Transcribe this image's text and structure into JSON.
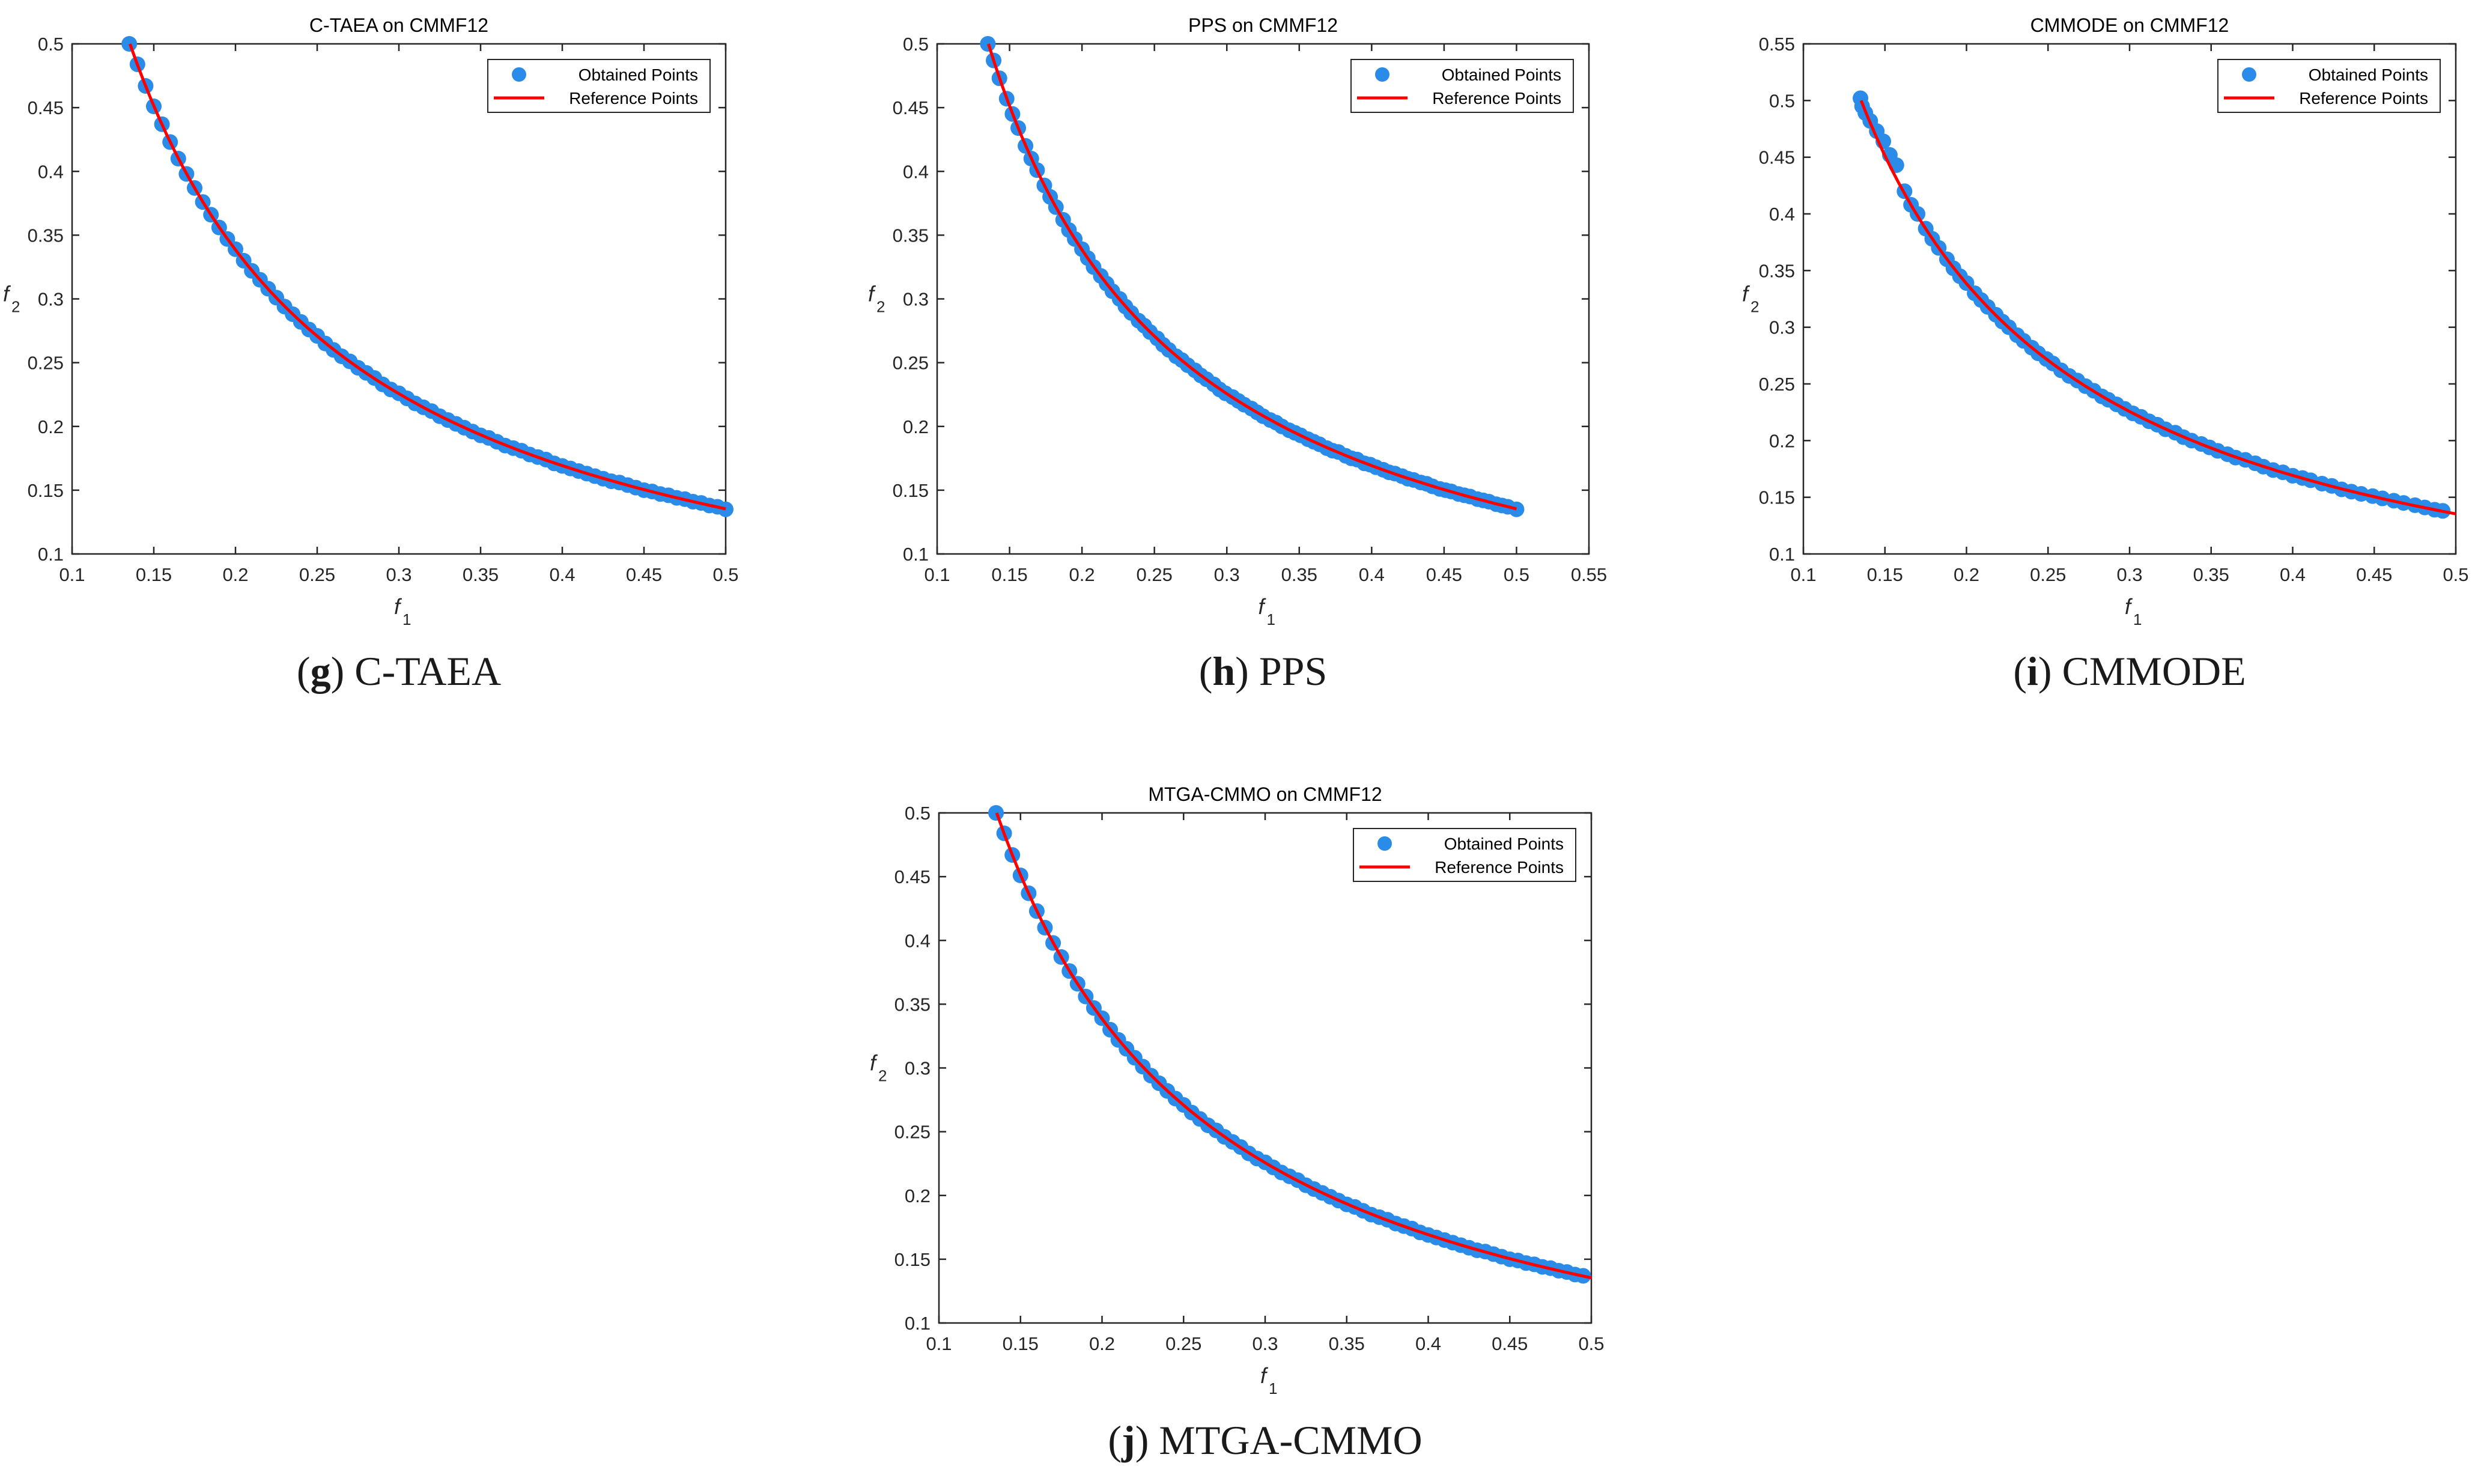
{
  "figure": {
    "background": "#ffffff",
    "point_color": "#2b8be8",
    "line_color": "#ff0000"
  },
  "chart_data": [
    {
      "type": "scatter",
      "panel_letter": "g",
      "caption_label": "C-TAEA",
      "title": "C-TAEA on CMMF12",
      "xlabel": "f",
      "xlabel_sub": "1",
      "ylabel": "f",
      "ylabel_sub": "2",
      "xlim": [
        0.1,
        0.5
      ],
      "ylim": [
        0.1,
        0.5
      ],
      "xticks": [
        0.1,
        0.15,
        0.2,
        0.25,
        0.3,
        0.35,
        0.4,
        0.45,
        0.5
      ],
      "xtick_labels": [
        "0.1",
        "0.15",
        "0.2",
        "0.25",
        "0.3",
        "0.35",
        "0.4",
        "0.45",
        "0.5"
      ],
      "yticks": [
        0.1,
        0.15,
        0.2,
        0.25,
        0.3,
        0.35,
        0.4,
        0.45,
        0.5
      ],
      "ytick_labels": [
        "0.1",
        "0.15",
        "0.2",
        "0.25",
        "0.3",
        "0.35",
        "0.4",
        "0.45",
        "0.5"
      ],
      "legend": [
        "Obtained Points",
        "Reference Points"
      ],
      "legend_position": "top-right",
      "reference_curve": "f2 = 0.0677 / f1, f1 in [0.1354, 0.5]",
      "reference_points": {
        "x": [
          0.135,
          0.15,
          0.175,
          0.2,
          0.25,
          0.3,
          0.35,
          0.4,
          0.45,
          0.5
        ],
        "y": [
          0.5,
          0.451,
          0.387,
          0.339,
          0.271,
          0.226,
          0.193,
          0.169,
          0.15,
          0.135
        ]
      },
      "obtained_points": {
        "x": [
          0.135,
          0.14,
          0.145,
          0.15,
          0.155,
          0.16,
          0.165,
          0.17,
          0.175,
          0.18,
          0.185,
          0.19,
          0.195,
          0.2,
          0.205,
          0.21,
          0.215,
          0.22,
          0.225,
          0.23,
          0.235,
          0.24,
          0.245,
          0.25,
          0.255,
          0.26,
          0.265,
          0.27,
          0.275,
          0.28,
          0.285,
          0.29,
          0.295,
          0.3,
          0.305,
          0.31,
          0.315,
          0.32,
          0.325,
          0.33,
          0.335,
          0.34,
          0.345,
          0.35,
          0.355,
          0.36,
          0.365,
          0.37,
          0.375,
          0.38,
          0.385,
          0.39,
          0.395,
          0.4,
          0.405,
          0.41,
          0.415,
          0.42,
          0.425,
          0.43,
          0.435,
          0.44,
          0.445,
          0.45,
          0.455,
          0.46,
          0.465,
          0.47,
          0.475,
          0.48,
          0.485,
          0.49,
          0.495,
          0.5
        ],
        "y": [
          0.5,
          0.484,
          0.467,
          0.451,
          0.437,
          0.423,
          0.41,
          0.398,
          0.387,
          0.376,
          0.366,
          0.356,
          0.347,
          0.339,
          0.33,
          0.322,
          0.315,
          0.308,
          0.301,
          0.294,
          0.288,
          0.282,
          0.276,
          0.271,
          0.265,
          0.26,
          0.255,
          0.251,
          0.246,
          0.242,
          0.238,
          0.233,
          0.229,
          0.226,
          0.222,
          0.218,
          0.215,
          0.212,
          0.208,
          0.205,
          0.202,
          0.199,
          0.196,
          0.193,
          0.191,
          0.188,
          0.185,
          0.183,
          0.181,
          0.178,
          0.176,
          0.174,
          0.171,
          0.169,
          0.167,
          0.165,
          0.163,
          0.161,
          0.159,
          0.157,
          0.156,
          0.154,
          0.152,
          0.15,
          0.149,
          0.147,
          0.146,
          0.144,
          0.143,
          0.141,
          0.14,
          0.138,
          0.137,
          0.135
        ]
      }
    },
    {
      "type": "scatter",
      "panel_letter": "h",
      "caption_label": "PPS",
      "title": "PPS on CMMF12",
      "xlabel": "f",
      "xlabel_sub": "1",
      "ylabel": "f",
      "ylabel_sub": "2",
      "xlim": [
        0.1,
        0.55
      ],
      "ylim": [
        0.1,
        0.5
      ],
      "xticks": [
        0.1,
        0.15,
        0.2,
        0.25,
        0.3,
        0.35,
        0.4,
        0.45,
        0.5,
        0.55
      ],
      "xtick_labels": [
        "0.1",
        "0.15",
        "0.2",
        "0.25",
        "0.3",
        "0.35",
        "0.4",
        "0.45",
        "0.5",
        "0.55"
      ],
      "yticks": [
        0.1,
        0.15,
        0.2,
        0.25,
        0.3,
        0.35,
        0.4,
        0.45,
        0.5
      ],
      "ytick_labels": [
        "0.1",
        "0.15",
        "0.2",
        "0.25",
        "0.3",
        "0.35",
        "0.4",
        "0.45",
        "0.5"
      ],
      "legend": [
        "Obtained Points",
        "Reference Points"
      ],
      "legend_position": "top-right",
      "reference_curve": "f2 = 0.0677 / f1, f1 in [0.1354, 0.5]",
      "reference_points": {
        "x": [
          0.135,
          0.15,
          0.175,
          0.2,
          0.25,
          0.3,
          0.35,
          0.4,
          0.45,
          0.5
        ],
        "y": [
          0.5,
          0.451,
          0.387,
          0.339,
          0.271,
          0.226,
          0.193,
          0.169,
          0.15,
          0.135
        ]
      },
      "obtained_points": {
        "x": [
          0.135,
          0.139,
          0.143,
          0.148,
          0.152,
          0.156,
          0.161,
          0.165,
          0.169,
          0.174,
          0.178,
          0.182,
          0.187,
          0.191,
          0.195,
          0.2,
          0.204,
          0.208,
          0.213,
          0.217,
          0.221,
          0.226,
          0.23,
          0.234,
          0.239,
          0.243,
          0.247,
          0.252,
          0.256,
          0.26,
          0.265,
          0.269,
          0.273,
          0.278,
          0.282,
          0.286,
          0.291,
          0.295,
          0.299,
          0.304,
          0.308,
          0.312,
          0.317,
          0.321,
          0.325,
          0.33,
          0.334,
          0.338,
          0.343,
          0.347,
          0.351,
          0.356,
          0.36,
          0.364,
          0.369,
          0.373,
          0.377,
          0.382,
          0.386,
          0.39,
          0.395,
          0.399,
          0.403,
          0.408,
          0.412,
          0.416,
          0.421,
          0.425,
          0.429,
          0.434,
          0.438,
          0.442,
          0.447,
          0.451,
          0.455,
          0.46,
          0.464,
          0.468,
          0.473,
          0.477,
          0.481,
          0.486,
          0.49,
          0.494,
          0.5
        ],
        "y": [
          0.5,
          0.487,
          0.473,
          0.457,
          0.445,
          0.434,
          0.42,
          0.41,
          0.401,
          0.389,
          0.38,
          0.372,
          0.362,
          0.354,
          0.347,
          0.339,
          0.332,
          0.325,
          0.318,
          0.312,
          0.306,
          0.3,
          0.294,
          0.289,
          0.283,
          0.279,
          0.274,
          0.269,
          0.264,
          0.26,
          0.255,
          0.252,
          0.248,
          0.244,
          0.24,
          0.237,
          0.233,
          0.229,
          0.226,
          0.223,
          0.22,
          0.217,
          0.214,
          0.211,
          0.208,
          0.205,
          0.203,
          0.2,
          0.197,
          0.195,
          0.193,
          0.19,
          0.188,
          0.186,
          0.183,
          0.181,
          0.18,
          0.177,
          0.175,
          0.174,
          0.171,
          0.17,
          0.168,
          0.166,
          0.164,
          0.163,
          0.161,
          0.159,
          0.158,
          0.156,
          0.155,
          0.153,
          0.151,
          0.15,
          0.149,
          0.147,
          0.146,
          0.145,
          0.143,
          0.142,
          0.141,
          0.139,
          0.138,
          0.137,
          0.135
        ]
      }
    },
    {
      "type": "scatter",
      "panel_letter": "i",
      "caption_label": "CMMODE",
      "title": "CMMODE on CMMF12",
      "xlabel": "f",
      "xlabel_sub": "1",
      "ylabel": "f",
      "ylabel_sub": "2",
      "xlim": [
        0.1,
        0.5
      ],
      "ylim": [
        0.1,
        0.55
      ],
      "xticks": [
        0.1,
        0.15,
        0.2,
        0.25,
        0.3,
        0.35,
        0.4,
        0.45,
        0.5
      ],
      "xtick_labels": [
        "0.1",
        "0.15",
        "0.2",
        "0.25",
        "0.3",
        "0.35",
        "0.4",
        "0.45",
        "0.5"
      ],
      "yticks": [
        0.1,
        0.15,
        0.2,
        0.25,
        0.3,
        0.35,
        0.4,
        0.45,
        0.5,
        0.55
      ],
      "ytick_labels": [
        "0.1",
        "0.15",
        "0.2",
        "0.25",
        "0.3",
        "0.35",
        "0.4",
        "0.45",
        "0.5",
        "0.55"
      ],
      "legend": [
        "Obtained Points",
        "Reference Points"
      ],
      "legend_position": "top-right",
      "reference_curve": "f2 = 0.0677 / f1, f1 in [0.1354, 0.5]",
      "reference_points": {
        "x": [
          0.135,
          0.15,
          0.175,
          0.2,
          0.25,
          0.3,
          0.35,
          0.4,
          0.45,
          0.5
        ],
        "y": [
          0.5,
          0.451,
          0.387,
          0.339,
          0.271,
          0.226,
          0.193,
          0.169,
          0.15,
          0.135
        ]
      },
      "obtained_points": {
        "x": [
          0.135,
          0.136,
          0.138,
          0.141,
          0.145,
          0.149,
          0.153,
          0.157,
          0.162,
          0.166,
          0.17,
          0.175,
          0.179,
          0.183,
          0.188,
          0.192,
          0.196,
          0.2,
          0.205,
          0.209,
          0.213,
          0.218,
          0.222,
          0.226,
          0.231,
          0.235,
          0.24,
          0.244,
          0.249,
          0.253,
          0.258,
          0.263,
          0.268,
          0.273,
          0.278,
          0.283,
          0.287,
          0.292,
          0.297,
          0.302,
          0.307,
          0.312,
          0.317,
          0.322,
          0.328,
          0.333,
          0.338,
          0.344,
          0.349,
          0.354,
          0.36,
          0.365,
          0.371,
          0.377,
          0.382,
          0.388,
          0.394,
          0.4,
          0.406,
          0.411,
          0.418,
          0.424,
          0.43,
          0.436,
          0.442,
          0.449,
          0.455,
          0.462,
          0.468,
          0.475,
          0.481,
          0.487,
          0.492
        ],
        "y": [
          0.502,
          0.495,
          0.489,
          0.482,
          0.473,
          0.464,
          0.452,
          0.443,
          0.42,
          0.408,
          0.4,
          0.387,
          0.378,
          0.37,
          0.36,
          0.352,
          0.345,
          0.339,
          0.33,
          0.324,
          0.318,
          0.311,
          0.305,
          0.3,
          0.293,
          0.288,
          0.282,
          0.277,
          0.272,
          0.268,
          0.262,
          0.257,
          0.253,
          0.248,
          0.244,
          0.239,
          0.236,
          0.232,
          0.228,
          0.224,
          0.221,
          0.217,
          0.214,
          0.21,
          0.207,
          0.203,
          0.2,
          0.197,
          0.194,
          0.191,
          0.188,
          0.185,
          0.183,
          0.18,
          0.177,
          0.174,
          0.172,
          0.169,
          0.167,
          0.165,
          0.162,
          0.16,
          0.157,
          0.155,
          0.153,
          0.151,
          0.149,
          0.147,
          0.145,
          0.143,
          0.141,
          0.139,
          0.138
        ]
      }
    },
    {
      "type": "scatter",
      "panel_letter": "j",
      "caption_label": "MTGA-CMMO",
      "title": "MTGA-CMMO on CMMF12",
      "xlabel": "f",
      "xlabel_sub": "1",
      "ylabel": "f",
      "ylabel_sub": "2",
      "xlim": [
        0.1,
        0.5
      ],
      "ylim": [
        0.1,
        0.5
      ],
      "xticks": [
        0.1,
        0.15,
        0.2,
        0.25,
        0.3,
        0.35,
        0.4,
        0.45,
        0.5
      ],
      "xtick_labels": [
        "0.1",
        "0.15",
        "0.2",
        "0.25",
        "0.3",
        "0.35",
        "0.4",
        "0.45",
        "0.5"
      ],
      "yticks": [
        0.1,
        0.15,
        0.2,
        0.25,
        0.3,
        0.35,
        0.4,
        0.45,
        0.5
      ],
      "ytick_labels": [
        "0.1",
        "0.15",
        "0.2",
        "0.25",
        "0.3",
        "0.35",
        "0.4",
        "0.45",
        "0.5"
      ],
      "legend": [
        "Obtained Points",
        "Reference Points"
      ],
      "legend_position": "top-right",
      "reference_curve": "f2 = 0.0677 / f1, f1 in [0.1354, 0.5]",
      "reference_points": {
        "x": [
          0.135,
          0.15,
          0.175,
          0.2,
          0.25,
          0.3,
          0.35,
          0.4,
          0.45,
          0.5
        ],
        "y": [
          0.5,
          0.451,
          0.387,
          0.339,
          0.271,
          0.226,
          0.193,
          0.169,
          0.15,
          0.135
        ]
      },
      "obtained_points": {
        "x": [
          0.135,
          0.14,
          0.145,
          0.15,
          0.155,
          0.16,
          0.165,
          0.17,
          0.175,
          0.18,
          0.185,
          0.19,
          0.195,
          0.2,
          0.205,
          0.21,
          0.215,
          0.22,
          0.225,
          0.23,
          0.235,
          0.24,
          0.245,
          0.25,
          0.255,
          0.26,
          0.265,
          0.27,
          0.275,
          0.28,
          0.285,
          0.29,
          0.295,
          0.3,
          0.305,
          0.31,
          0.315,
          0.32,
          0.325,
          0.33,
          0.335,
          0.34,
          0.345,
          0.35,
          0.355,
          0.36,
          0.365,
          0.37,
          0.375,
          0.38,
          0.385,
          0.39,
          0.395,
          0.4,
          0.405,
          0.41,
          0.415,
          0.42,
          0.425,
          0.43,
          0.435,
          0.44,
          0.445,
          0.45,
          0.455,
          0.46,
          0.465,
          0.47,
          0.475,
          0.48,
          0.485,
          0.49,
          0.495
        ],
        "y": [
          0.5,
          0.484,
          0.467,
          0.451,
          0.437,
          0.423,
          0.41,
          0.398,
          0.387,
          0.376,
          0.366,
          0.356,
          0.347,
          0.339,
          0.33,
          0.322,
          0.315,
          0.308,
          0.301,
          0.294,
          0.288,
          0.282,
          0.276,
          0.271,
          0.265,
          0.26,
          0.255,
          0.251,
          0.246,
          0.242,
          0.238,
          0.233,
          0.229,
          0.226,
          0.222,
          0.218,
          0.215,
          0.212,
          0.208,
          0.205,
          0.202,
          0.199,
          0.196,
          0.193,
          0.191,
          0.188,
          0.185,
          0.183,
          0.181,
          0.178,
          0.176,
          0.174,
          0.171,
          0.169,
          0.167,
          0.165,
          0.163,
          0.161,
          0.159,
          0.157,
          0.156,
          0.154,
          0.152,
          0.15,
          0.149,
          0.147,
          0.146,
          0.144,
          0.143,
          0.141,
          0.14,
          0.138,
          0.137
        ]
      }
    }
  ]
}
